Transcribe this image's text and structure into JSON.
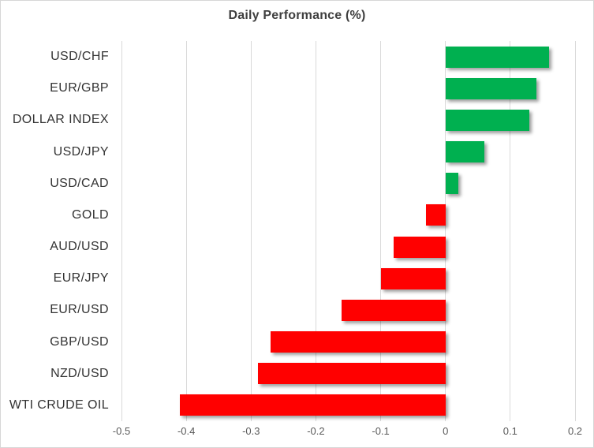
{
  "chart_data": {
    "type": "bar",
    "orientation": "horizontal",
    "title": "Daily Performance (%)",
    "categories": [
      "USD/CHF",
      "EUR/GBP",
      "DOLLAR INDEX",
      "USD/JPY",
      "USD/CAD",
      "GOLD",
      "AUD/USD",
      "EUR/JPY",
      "EUR/USD",
      "GBP/USD",
      "NZD/USD",
      "WTI CRUDE OIL"
    ],
    "values": [
      0.16,
      0.14,
      0.13,
      0.06,
      0.02,
      -0.03,
      -0.08,
      -0.1,
      -0.16,
      -0.27,
      -0.29,
      -0.41
    ],
    "xlim": [
      -0.5,
      0.2
    ],
    "xticks": [
      -0.5,
      -0.4,
      -0.3,
      -0.2,
      -0.1,
      0,
      0.1,
      0.2
    ],
    "xtick_labels": [
      "-0.5",
      "-0.4",
      "-0.3",
      "-0.2",
      "-0.1",
      "0",
      "0.1",
      "0.2"
    ],
    "grid": true,
    "legend": "none",
    "colors": {
      "positive": "#00B050",
      "negative": "#FF0000",
      "gridline": "#D9D9D9",
      "title": "#3F3F3F",
      "category_label": "#333333",
      "tick_label": "#595959"
    }
  }
}
